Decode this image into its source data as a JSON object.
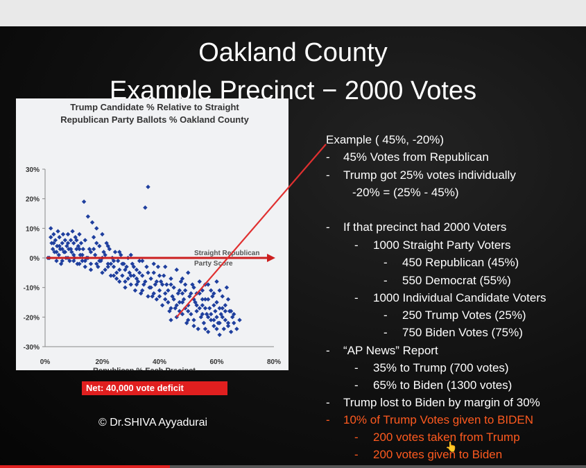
{
  "slide": {
    "title_line1": "Oakland County",
    "title_line2": "Example Precinct − 2000 Votes",
    "copyright": "© Dr.SHIVA Ayyadurai",
    "video_progress": 0.29
  },
  "chart_data": {
    "type": "scatter",
    "title": "Trump Candidate % Relative to Straight Republican Party Ballots % Oakland County",
    "title_line1": "Trump Candidate % Relative to Straight",
    "title_line2": "Republican Party Ballots % Oakland County",
    "xlabel": "Republican % Each Precinct",
    "ylabel": "",
    "xlim": [
      0,
      80
    ],
    "ylim": [
      -30,
      30
    ],
    "x_ticks": [
      "0%",
      "20%",
      "40%",
      "60%",
      "80%"
    ],
    "y_ticks": [
      "30%",
      "20%",
      "10%",
      "0%",
      "-10%",
      "-20%",
      "-30%"
    ],
    "marker_color": "#1f3f9e",
    "reference_line": {
      "label_line1": "Straight Republican",
      "label_line2": "Party Score",
      "y": 0,
      "color": "#cc1f1f"
    },
    "pointer": {
      "from": [
        46,
        -20
      ],
      "color": "#e03030"
    },
    "net_label": "Net:  40,000 vote deficit",
    "points": [
      [
        1,
        0
      ],
      [
        1.5,
        0
      ],
      [
        2,
        10
      ],
      [
        2.3,
        5
      ],
      [
        2.7,
        3
      ],
      [
        3,
        8
      ],
      [
        3.3,
        2
      ],
      [
        3.6,
        6
      ],
      [
        4,
        -1
      ],
      [
        4.2,
        4
      ],
      [
        4.5,
        9
      ],
      [
        4.8,
        1
      ],
      [
        5,
        7
      ],
      [
        5.3,
        3
      ],
      [
        5.6,
        -2
      ],
      [
        6,
        5
      ],
      [
        6.3,
        8
      ],
      [
        6.6,
        2
      ],
      [
        7,
        6
      ],
      [
        7.3,
        0
      ],
      [
        7.6,
        4
      ],
      [
        8,
        8
      ],
      [
        8.3,
        3
      ],
      [
        8.6,
        -1
      ],
      [
        9,
        6
      ],
      [
        9.3,
        2
      ],
      [
        9.6,
        9
      ],
      [
        10,
        5
      ],
      [
        10.3,
        0
      ],
      [
        10.6,
        7
      ],
      [
        11,
        3
      ],
      [
        11.3,
        -2
      ],
      [
        11.6,
        4
      ],
      [
        12,
        8
      ],
      [
        12.3,
        1
      ],
      [
        12.6,
        5
      ],
      [
        13,
        -1
      ],
      [
        13.3,
        3
      ],
      [
        13.6,
        19
      ],
      [
        14,
        6
      ],
      [
        14.5,
        0
      ],
      [
        15,
        14
      ],
      [
        15.5,
        3
      ],
      [
        16,
        -2
      ],
      [
        16.5,
        12
      ],
      [
        17,
        7
      ],
      [
        17.5,
        1
      ],
      [
        18,
        10
      ],
      [
        18.5,
        -3
      ],
      [
        19,
        4
      ],
      [
        19.5,
        -1
      ],
      [
        20,
        8
      ],
      [
        20.5,
        2
      ],
      [
        21,
        -4
      ],
      [
        21.5,
        5
      ],
      [
        22,
        -2
      ],
      [
        22.5,
        3
      ],
      [
        23,
        -6
      ],
      [
        23.5,
        0
      ],
      [
        24,
        -3
      ],
      [
        24.5,
        2
      ],
      [
        25,
        -7
      ],
      [
        25.5,
        -1
      ],
      [
        26,
        -4
      ],
      [
        26.5,
        1
      ],
      [
        27,
        -6
      ],
      [
        27.5,
        -2
      ],
      [
        28,
        -8
      ],
      [
        28.5,
        -3
      ],
      [
        29,
        0
      ],
      [
        29.5,
        -5
      ],
      [
        30,
        -9
      ],
      [
        30.5,
        -2
      ],
      [
        31,
        -6
      ],
      [
        31.5,
        -11
      ],
      [
        32,
        -4
      ],
      [
        32.5,
        -8
      ],
      [
        33,
        -1
      ],
      [
        33.5,
        -12
      ],
      [
        34,
        -6
      ],
      [
        34.5,
        -9
      ],
      [
        35,
        17
      ],
      [
        35.5,
        -3
      ],
      [
        36,
        24
      ],
      [
        36.5,
        -10
      ],
      [
        37,
        -7
      ],
      [
        37.5,
        -13
      ],
      [
        38,
        -5
      ],
      [
        38.5,
        -9
      ],
      [
        39,
        -14
      ],
      [
        39.5,
        -3
      ],
      [
        40,
        -11
      ],
      [
        40.5,
        -8
      ],
      [
        41,
        -16
      ],
      [
        41.5,
        -6
      ],
      [
        42,
        -12
      ],
      [
        42.5,
        -9
      ],
      [
        43,
        -15
      ],
      [
        43.5,
        -18
      ],
      [
        44,
        -7
      ],
      [
        44.5,
        -13
      ],
      [
        45,
        -10
      ],
      [
        45.5,
        -17
      ],
      [
        46,
        -20
      ],
      [
        46.5,
        -12
      ],
      [
        47,
        -15
      ],
      [
        47.5,
        -8
      ],
      [
        48,
        -19
      ],
      [
        48.5,
        -14
      ],
      [
        49,
        -11
      ],
      [
        49.5,
        -22
      ],
      [
        50,
        -16
      ],
      [
        50.5,
        -13
      ],
      [
        51,
        -19
      ],
      [
        51.5,
        -9
      ],
      [
        52,
        -21
      ],
      [
        52.5,
        -15
      ],
      [
        53,
        -18
      ],
      [
        53.5,
        -24
      ],
      [
        54,
        -12
      ],
      [
        54.5,
        -20
      ],
      [
        55,
        -16
      ],
      [
        55.5,
        -22
      ],
      [
        56,
        -14
      ],
      [
        56.5,
        -19
      ],
      [
        57,
        -25
      ],
      [
        57.5,
        -17
      ],
      [
        58,
        -21
      ],
      [
        58.5,
        -13
      ],
      [
        59,
        -23
      ],
      [
        59.5,
        -18
      ],
      [
        60,
        -15
      ],
      [
        60.5,
        -22
      ],
      [
        61,
        -26
      ],
      [
        61.5,
        -19
      ],
      [
        62,
        -17
      ],
      [
        62.5,
        -24
      ],
      [
        63,
        -21
      ],
      [
        63.5,
        -10
      ],
      [
        64,
        -23
      ],
      [
        64.5,
        -18
      ],
      [
        65,
        -25
      ],
      [
        65.5,
        -20
      ],
      [
        66,
        -22
      ],
      [
        67,
        -24
      ],
      [
        68,
        -21
      ],
      [
        44,
        -21
      ],
      [
        48,
        -7
      ],
      [
        52,
        -10
      ],
      [
        56,
        -9
      ],
      [
        60,
        -8
      ],
      [
        50,
        -5
      ],
      [
        46,
        -4
      ],
      [
        42,
        -3
      ],
      [
        38,
        -2
      ],
      [
        34,
        -1
      ],
      [
        30,
        1
      ],
      [
        26,
        2
      ],
      [
        22,
        4
      ],
      [
        18,
        5
      ],
      [
        40,
        -6
      ],
      [
        44,
        -9
      ],
      [
        48,
        -12
      ],
      [
        52,
        -14
      ],
      [
        56,
        -17
      ],
      [
        60,
        -20
      ],
      [
        64,
        -22
      ],
      [
        62,
        -13
      ],
      [
        58,
        -11
      ],
      [
        54,
        -8
      ],
      [
        36,
        -5
      ],
      [
        32,
        -7
      ],
      [
        28,
        -4
      ],
      [
        24,
        -1
      ],
      [
        20,
        0
      ],
      [
        16,
        2
      ],
      [
        12,
        -2
      ],
      [
        8,
        0
      ],
      [
        6,
        -1
      ],
      [
        10,
        1
      ],
      [
        14,
        -1
      ],
      [
        45,
        -14
      ],
      [
        47,
        -18
      ],
      [
        49,
        -17
      ],
      [
        51,
        -12
      ],
      [
        53,
        -16
      ],
      [
        55,
        -11
      ],
      [
        57,
        -14
      ],
      [
        59,
        -16
      ],
      [
        61,
        -17
      ],
      [
        63,
        -16
      ],
      [
        65,
        -18
      ],
      [
        43,
        -11
      ],
      [
        41,
        -9
      ],
      [
        39,
        -8
      ],
      [
        37,
        -10
      ],
      [
        35,
        -8
      ],
      [
        33,
        -5
      ],
      [
        31,
        -3
      ],
      [
        29,
        -7
      ],
      [
        27,
        -2
      ],
      [
        25,
        -5
      ],
      [
        23,
        -2
      ],
      [
        21,
        1
      ],
      [
        19,
        -1
      ],
      [
        17,
        3
      ],
      [
        15,
        0
      ],
      [
        13,
        1
      ],
      [
        11,
        6
      ],
      [
        9,
        3
      ],
      [
        7,
        2
      ],
      [
        5,
        4
      ],
      [
        3,
        5
      ],
      [
        55,
        -19
      ],
      [
        57,
        -20
      ],
      [
        59,
        -21
      ],
      [
        61,
        -22
      ],
      [
        50,
        -18
      ],
      [
        48,
        -15
      ],
      [
        46,
        -16
      ],
      [
        44,
        -17
      ],
      [
        42,
        -14
      ],
      [
        40,
        -13
      ],
      [
        38,
        -12
      ],
      [
        36,
        -13
      ],
      [
        47,
        -11
      ],
      [
        49,
        -9
      ],
      [
        53,
        -12
      ],
      [
        55,
        -14
      ],
      [
        57,
        -9
      ],
      [
        59,
        -12
      ],
      [
        61,
        -11
      ],
      [
        63,
        -18
      ],
      [
        66,
        -19
      ],
      [
        64,
        -14
      ],
      [
        50,
        -21
      ],
      [
        52,
        -23
      ],
      [
        54,
        -17
      ],
      [
        56,
        -24
      ],
      [
        58,
        -19
      ],
      [
        60,
        -24
      ],
      [
        62,
        -20
      ],
      [
        34,
        -11
      ],
      [
        32,
        -9
      ],
      [
        30,
        -6
      ],
      [
        28,
        -10
      ],
      [
        26,
        -8
      ],
      [
        24,
        -6
      ],
      [
        22,
        -3
      ],
      [
        20,
        -5
      ],
      [
        18,
        -2
      ],
      [
        16,
        -4
      ],
      [
        14,
        -3
      ],
      [
        12,
        3
      ],
      [
        10,
        -1
      ],
      [
        8,
        5
      ],
      [
        6,
        3
      ],
      [
        4,
        2
      ],
      [
        2,
        7
      ]
    ]
  },
  "notes": {
    "lines": [
      {
        "text": "Example ( 45%, -20%)",
        "dash": "",
        "color": "white"
      },
      {
        "text": "45% Votes from Republican",
        "dash": "-",
        "color": "white"
      },
      {
        "text": "Trump got 25% votes individually",
        "dash": "-",
        "color": "white"
      },
      {
        "text": "-20% = (25% - 45%)",
        "dash": "",
        "color": "white"
      },
      {
        "text": "If that precinct had 2000  Voters",
        "dash": "-",
        "color": "white"
      },
      {
        "text": "1000  Straight Party Voters",
        "dash": "-",
        "color": "white"
      },
      {
        "text": "450 Republican (45%)",
        "dash": "-",
        "color": "white"
      },
      {
        "text": "550 Democrat   (55%)",
        "dash": "-",
        "color": "white"
      },
      {
        "text": "1000 Individual Candidate Voters",
        "dash": "-",
        "color": "white"
      },
      {
        "text": "250 Trump Votes (25%)",
        "dash": "-",
        "color": "white"
      },
      {
        "text": "750 Biden Votes (75%)",
        "dash": "-",
        "color": "white"
      },
      {
        "text": "“AP News” Report",
        "dash": "-",
        "color": "white"
      },
      {
        "text": "35% to Trump (700 votes)",
        "dash": "-",
        "color": "white"
      },
      {
        "text": "65% to Biden (1300 votes)",
        "dash": "-",
        "color": "white"
      },
      {
        "text": "Trump lost to Biden by margin of 30%",
        "dash": "-",
        "color": "white"
      },
      {
        "text": "10% of Trump Votes given to BIDEN",
        "dash": "-",
        "color": "orange"
      },
      {
        "text": "200 votes taken from Trump",
        "dash": "-",
        "color": "orange"
      },
      {
        "text": "200 votes given to Biden",
        "dash": "-",
        "color": "orange"
      }
    ]
  },
  "colors": {
    "white": "#ffffff",
    "orange": "#ff5a1f",
    "accent_red": "#e01f1f"
  }
}
